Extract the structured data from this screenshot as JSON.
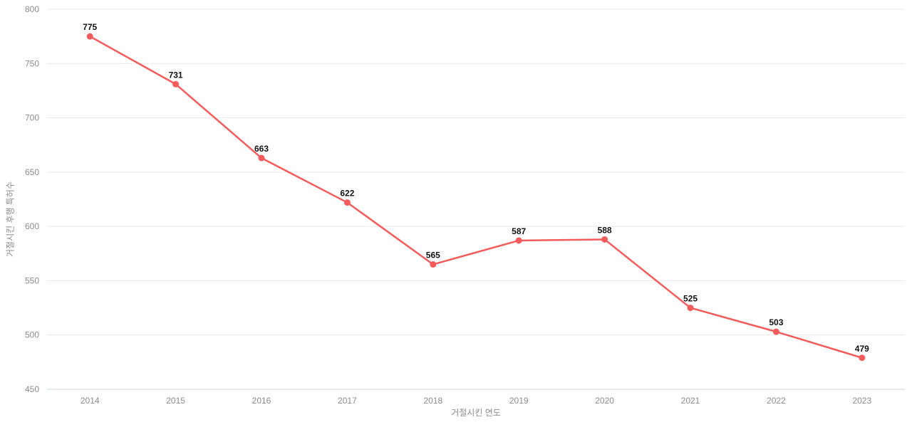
{
  "chart_data": {
    "type": "line",
    "categories": [
      "2014",
      "2015",
      "2016",
      "2017",
      "2018",
      "2019",
      "2020",
      "2021",
      "2022",
      "2023"
    ],
    "values": [
      775,
      731,
      663,
      622,
      565,
      587,
      588,
      525,
      503,
      479
    ],
    "title": "",
    "xlabel": "거절시킨 연도",
    "ylabel": "거절시킨 후행 특허수",
    "ylim": [
      450,
      800
    ],
    "ytick_step": 50,
    "yticks": [
      450,
      500,
      550,
      600,
      650,
      700,
      750,
      800
    ],
    "grid": true,
    "legend": false,
    "show_data_labels": true,
    "colors": {
      "line": "#f45c5c",
      "marker": "#f45c5c",
      "gridline": "#e7e7e7",
      "axis_line": "#ccd6e2",
      "tick_label": "#8c8c8c",
      "axis_label": "#8c8c8c",
      "data_label": "#111111"
    }
  }
}
